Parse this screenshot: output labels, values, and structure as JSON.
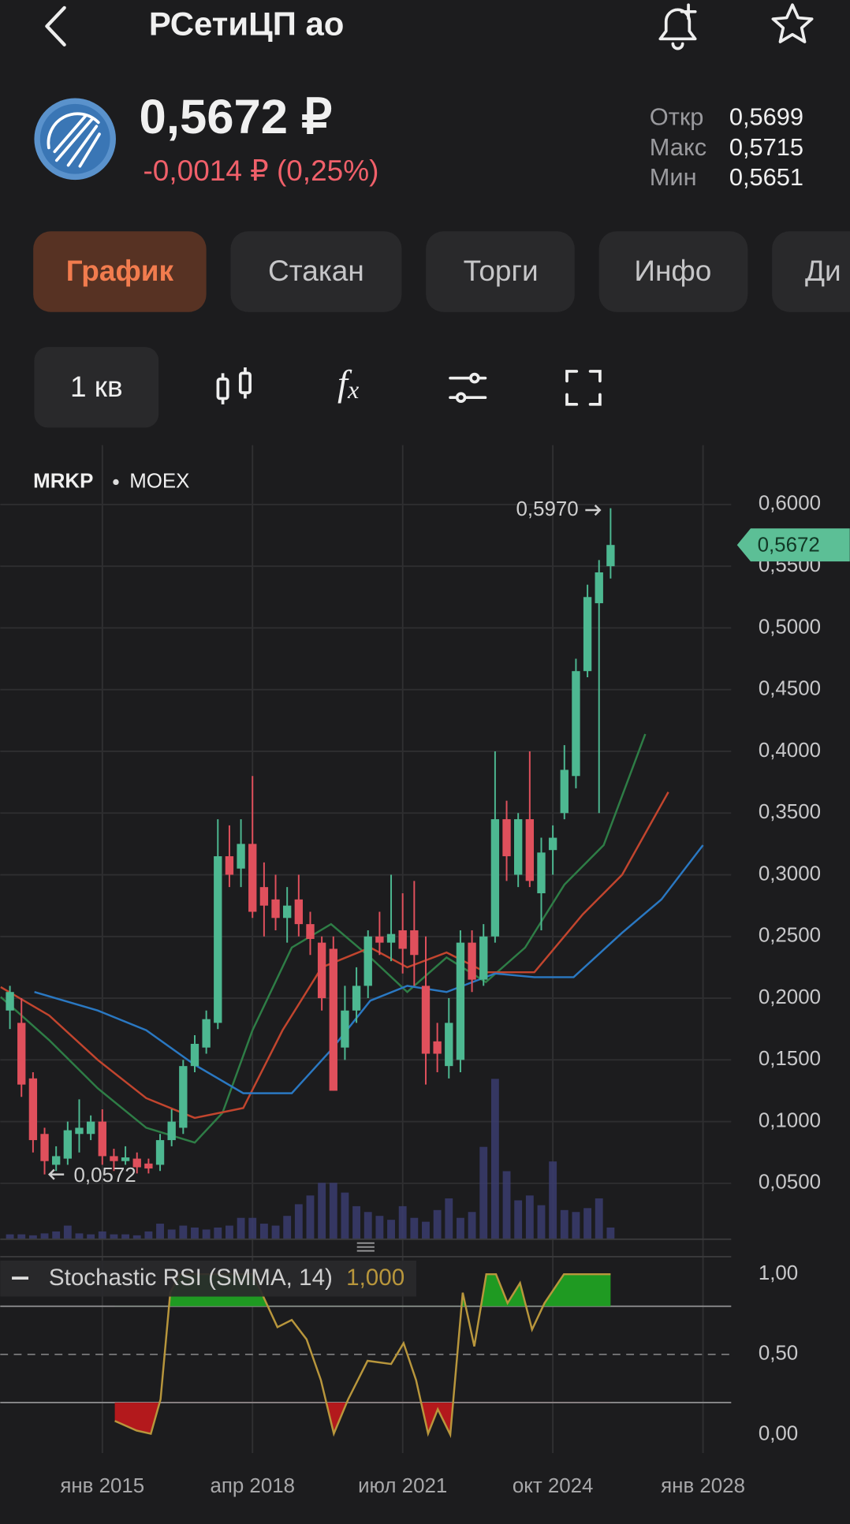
{
  "header": {
    "title": "РСетиЦП ао"
  },
  "quote": {
    "price": "0,5672 ₽",
    "change": "-0,0014 ₽ (0,25%)",
    "stats": [
      {
        "label": "Откр",
        "value": "0,5699"
      },
      {
        "label": "Макс",
        "value": "0,5715"
      },
      {
        "label": "Мин",
        "value": "0,5651"
      }
    ]
  },
  "tabs": [
    "График",
    "Стакан",
    "Торги",
    "Инфо",
    "Ди"
  ],
  "toolbar": {
    "period": "1 кв",
    "formula_icon": [
      "f",
      "x"
    ]
  },
  "chart_data": [
    {
      "type": "candlestick",
      "symbol": "MRKP",
      "exchange": "MOEX",
      "x": [
        2013,
        2013.25,
        2013.5,
        2013.75,
        2014,
        2014.25,
        2014.5,
        2014.75,
        2015,
        2015.25,
        2015.5,
        2015.75,
        2016,
        2016.25,
        2016.5,
        2016.75,
        2017,
        2017.25,
        2017.5,
        2017.75,
        2018,
        2018.25,
        2018.5,
        2018.75,
        2019,
        2019.25,
        2019.5,
        2019.75,
        2020,
        2020.25,
        2020.5,
        2020.75,
        2021,
        2021.25,
        2021.5,
        2021.75,
        2022,
        2022.25,
        2022.5,
        2022.75,
        2023,
        2023.25,
        2023.5,
        2023.75,
        2024,
        2024.25,
        2024.5,
        2024.75,
        2025,
        2025.25,
        2025.5,
        2025.75,
        2026
      ],
      "open": [
        0.19,
        0.18,
        0.135,
        0.09,
        0.065,
        0.07,
        0.09,
        0.09,
        0.1,
        0.072,
        0.068,
        0.07,
        0.066,
        0.065,
        0.085,
        0.095,
        0.145,
        0.16,
        0.18,
        0.315,
        0.305,
        0.325,
        0.29,
        0.28,
        0.265,
        0.28,
        0.26,
        0.245,
        0.24,
        0.16,
        0.19,
        0.21,
        0.25,
        0.245,
        0.255,
        0.255,
        0.21,
        0.165,
        0.145,
        0.15,
        0.245,
        0.215,
        0.25,
        0.345,
        0.3,
        0.345,
        0.285,
        0.32,
        0.35,
        0.38,
        0.465,
        0.52,
        0.55
      ],
      "high": [
        0.21,
        0.2,
        0.14,
        0.095,
        0.08,
        0.1,
        0.118,
        0.105,
        0.11,
        0.078,
        0.08,
        0.075,
        0.07,
        0.09,
        0.11,
        0.15,
        0.17,
        0.19,
        0.345,
        0.34,
        0.345,
        0.38,
        0.31,
        0.3,
        0.29,
        0.3,
        0.27,
        0.25,
        0.25,
        0.21,
        0.225,
        0.255,
        0.27,
        0.3,
        0.285,
        0.295,
        0.25,
        0.18,
        0.2,
        0.255,
        0.255,
        0.26,
        0.4,
        0.36,
        0.35,
        0.4,
        0.33,
        0.34,
        0.405,
        0.475,
        0.535,
        0.555,
        0.597
      ],
      "low": [
        0.175,
        0.12,
        0.075,
        0.0572,
        0.06,
        0.065,
        0.075,
        0.085,
        0.065,
        0.06,
        0.065,
        0.058,
        0.058,
        0.06,
        0.08,
        0.09,
        0.14,
        0.155,
        0.175,
        0.29,
        0.29,
        0.265,
        0.25,
        0.255,
        0.245,
        0.25,
        0.235,
        0.19,
        0.125,
        0.15,
        0.18,
        0.2,
        0.235,
        0.23,
        0.22,
        0.21,
        0.13,
        0.14,
        0.135,
        0.14,
        0.205,
        0.21,
        0.245,
        0.295,
        0.29,
        0.29,
        0.255,
        0.3,
        0.345,
        0.37,
        0.46,
        0.35,
        0.54
      ],
      "close": [
        0.205,
        0.13,
        0.085,
        0.068,
        0.072,
        0.093,
        0.095,
        0.1,
        0.072,
        0.068,
        0.071,
        0.063,
        0.062,
        0.085,
        0.1,
        0.145,
        0.163,
        0.183,
        0.315,
        0.3,
        0.325,
        0.27,
        0.275,
        0.265,
        0.275,
        0.26,
        0.248,
        0.2,
        0.125,
        0.19,
        0.21,
        0.25,
        0.245,
        0.252,
        0.24,
        0.235,
        0.155,
        0.155,
        0.18,
        0.245,
        0.215,
        0.25,
        0.345,
        0.315,
        0.345,
        0.295,
        0.318,
        0.33,
        0.385,
        0.465,
        0.525,
        0.545,
        0.5672
      ],
      "volume": [
        5,
        5,
        4,
        6,
        8,
        14,
        6,
        5,
        8,
        5,
        5,
        4,
        8,
        16,
        10,
        14,
        12,
        10,
        12,
        14,
        22,
        22,
        16,
        14,
        24,
        36,
        45,
        58,
        58,
        48,
        34,
        28,
        24,
        20,
        34,
        22,
        18,
        30,
        42,
        22,
        28,
        95,
        165,
        70,
        40,
        45,
        35,
        80,
        30,
        28,
        32,
        42,
        12
      ],
      "volume_lim": [
        0,
        200
      ],
      "volume_color": "#3a3c6e",
      "up_color": "#4db891",
      "down_color": "#e0505c",
      "series": [
        {
          "color": "#2e7d46",
          "x": [
            2012.8,
            2013.85,
            2014.9,
            2015.95,
            2017.0,
            2017.6,
            2018.25,
            2019.1,
            2019.95,
            2020.8,
            2021.6,
            2022.45,
            2023.3,
            2024.15,
            2025.0,
            2025.85,
            2026.75
          ],
          "values": [
            0.201,
            0.166,
            0.127,
            0.095,
            0.083,
            0.107,
            0.174,
            0.241,
            0.26,
            0.233,
            0.205,
            0.233,
            0.213,
            0.241,
            0.292,
            0.324,
            0.414
          ]
        },
        {
          "color": "#c2452e",
          "x": [
            2012.8,
            2013.85,
            2014.9,
            2015.95,
            2017.0,
            2018.05,
            2018.9,
            2019.75,
            2020.8,
            2021.6,
            2022.45,
            2023.3,
            2024.35,
            2025.4,
            2026.25,
            2027.25
          ],
          "values": [
            0.209,
            0.186,
            0.15,
            0.119,
            0.103,
            0.111,
            0.174,
            0.225,
            0.241,
            0.225,
            0.237,
            0.221,
            0.221,
            0.268,
            0.3,
            0.367
          ]
        },
        {
          "color": "#2a78c2",
          "x": [
            2013.53,
            2014.9,
            2015.95,
            2017.0,
            2018.05,
            2019.1,
            2019.95,
            2020.8,
            2021.6,
            2022.45,
            2023.5,
            2024.35,
            2025.2,
            2026.25,
            2027.1,
            2028.0
          ],
          "values": [
            0.205,
            0.19,
            0.174,
            0.146,
            0.123,
            0.123,
            0.158,
            0.198,
            0.21,
            0.205,
            0.22,
            0.217,
            0.217,
            0.253,
            0.28,
            0.324
          ]
        }
      ],
      "high_label": {
        "value": 0.597,
        "label": "0,5970"
      },
      "low_label": {
        "value": 0.0572,
        "label": "0,0572"
      },
      "last": {
        "value": 0.5672,
        "label": "0,5672",
        "color": "#5cbf96"
      },
      "xlim": [
        2012.79,
        2028.61
      ],
      "ylim": [
        0.0047,
        0.6465
      ],
      "yticks": [
        {
          "value": 0.05,
          "label": "0,0500"
        },
        {
          "value": 0.1,
          "label": "0,1000"
        },
        {
          "value": 0.15,
          "label": "0,1500"
        },
        {
          "value": 0.2,
          "label": "0,2000"
        },
        {
          "value": 0.25,
          "label": "0,2500"
        },
        {
          "value": 0.3,
          "label": "0,3000"
        },
        {
          "value": 0.35,
          "label": "0,3500"
        },
        {
          "value": 0.4,
          "label": "0,4000"
        },
        {
          "value": 0.45,
          "label": "0,4500"
        },
        {
          "value": 0.5,
          "label": "0,5000"
        },
        {
          "value": 0.55,
          "label": "0,5500"
        },
        {
          "value": 0.6,
          "label": "0,6000"
        }
      ],
      "grid": true
    },
    {
      "type": "line",
      "title": "Stochastic RSI (SMMA, 14)",
      "last_value_label": "1,000",
      "color": "#b8963c",
      "x": [
        2015.27,
        2015.74,
        2016.05,
        2016.26,
        2016.47,
        2016.68,
        2018.26,
        2018.79,
        2019.1,
        2019.42,
        2019.73,
        2020.01,
        2020.32,
        2020.74,
        2021.25,
        2021.52,
        2021.79,
        2022.05,
        2022.26,
        2022.53,
        2022.8,
        2023.05,
        2023.31,
        2023.52,
        2023.77,
        2024.04,
        2024.3,
        2024.57,
        2024.99,
        2026.0
      ],
      "values": [
        0.085,
        0.025,
        0.005,
        0.22,
        0.885,
        1,
        1,
        0.67,
        0.715,
        0.594,
        0.34,
        0.006,
        0.22,
        0.46,
        0.44,
        0.57,
        0.34,
        0.006,
        0.158,
        0,
        0.885,
        0.55,
        1,
        1,
        0.82,
        0.945,
        0.655,
        0.82,
        1,
        1
      ],
      "bands": [
        0.2,
        0.8
      ],
      "midline": 0.5,
      "overbought_color": "#1f9a22",
      "oversold_color": "#b3191c",
      "xlim": [
        2012.79,
        2028.61
      ],
      "ylim": [
        -0.12,
        1.1
      ],
      "yticks": [
        {
          "value": 0,
          "label": "0,00"
        },
        {
          "value": 0.5,
          "label": "0,50"
        },
        {
          "value": 1,
          "label": "1,00"
        }
      ],
      "xticks": [
        {
          "value": 2015,
          "label": "янв 2015"
        },
        {
          "value": 2018.25,
          "label": "апр 2018"
        },
        {
          "value": 2021.5,
          "label": "июл 2021"
        },
        {
          "value": 2024.75,
          "label": "окт 2024"
        },
        {
          "value": 2028,
          "label": "янв 2028"
        }
      ]
    }
  ]
}
